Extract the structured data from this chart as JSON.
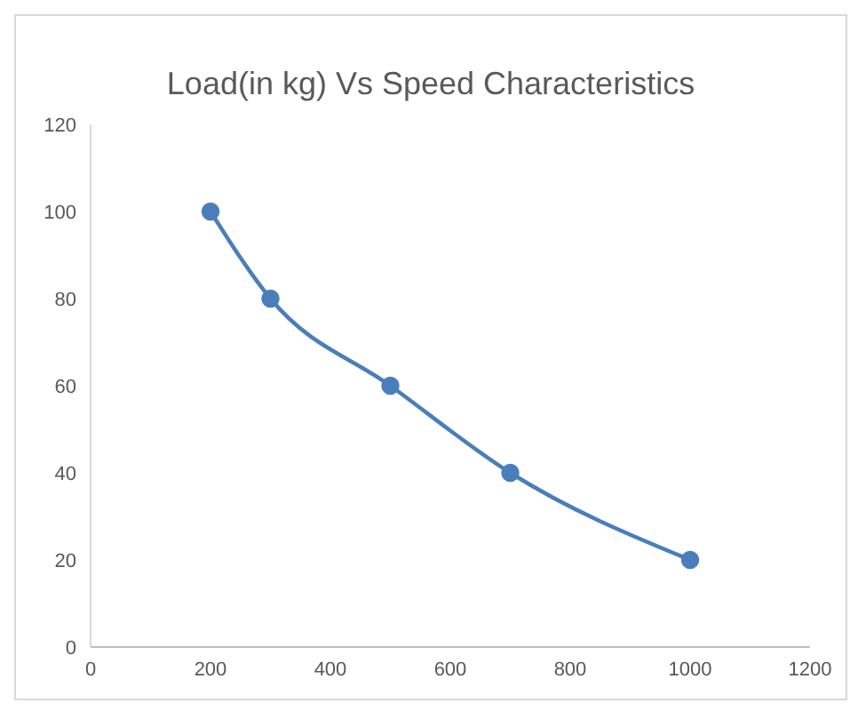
{
  "chart_data": {
    "type": "line",
    "title": "Load(in kg) Vs Speed Characteristics",
    "x": [
      200,
      300,
      500,
      700,
      1000
    ],
    "series": [
      {
        "color": "#4a7ebb",
        "values": [
          100,
          80,
          60,
          40,
          20
        ]
      }
    ],
    "xlim": [
      0,
      1200
    ],
    "xticks": [
      0,
      200,
      400,
      600,
      800,
      1000,
      1200
    ],
    "ylim": [
      0,
      120
    ],
    "yticks": [
      0,
      20,
      40,
      60,
      80,
      100,
      120
    ],
    "grid": false,
    "legend": false,
    "marker": "circle",
    "line_style": "solid"
  }
}
